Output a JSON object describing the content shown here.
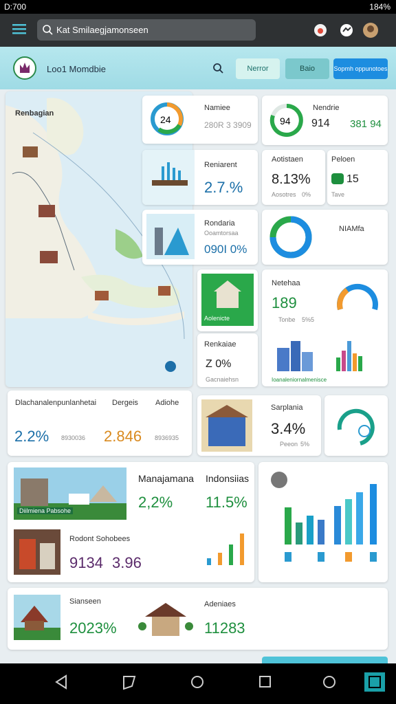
{
  "status_bar": {
    "time": "D:700",
    "battery": "184%"
  },
  "search": {
    "placeholder": "Kat Smilaegjamonseen"
  },
  "header": {
    "title": "Loo1 Momdbie",
    "buttons": [
      "Nerror",
      "Baio",
      "Sopmh oppunotoes"
    ]
  },
  "map": {
    "title": "Renbagian"
  },
  "cards": [
    {
      "badge": "24",
      "title": "Namiee",
      "value": "280R 3 3909"
    },
    {
      "badge": "94",
      "title": "Nendrie",
      "value": "914",
      "extra": "381 94"
    },
    {
      "title": "Reniarent",
      "value": "2.7.%"
    },
    {
      "title": "Aotistaen",
      "value": "8.13%",
      "note": "Aosotres",
      "extra": "0%"
    },
    {
      "title": "Peloen",
      "value": "15",
      "note": "Tave"
    },
    {
      "title": "Rondaria",
      "note": "Ooamtorsaa",
      "value": "090I 0%"
    },
    {
      "title": "NIAMfa"
    },
    {
      "title": "Aolenicte"
    },
    {
      "title": "Netehaa",
      "value": "189",
      "note": "Tonbe",
      "extra": "5%5"
    },
    {
      "title": "Renkaiae",
      "value": "Z 0%",
      "note": "Gacnaiehsn"
    },
    {
      "title": "Ioanaleniornalmenisce"
    }
  ],
  "stats_row": {
    "labels": [
      "Dlachanalenpunlanhetai",
      "Dergeis",
      "Adiohe"
    ],
    "values": [
      "2.2%",
      "8930036",
      "2.846",
      "8936935"
    ]
  },
  "sarplania": {
    "title": "Sarplania",
    "value": "3.4%",
    "note": "Peeon",
    "extra": "5%"
  },
  "feature": {
    "image_label": "Diilmiena Pabsohe",
    "titles": [
      "Manajamana",
      "Indonsiias"
    ],
    "values": [
      "2,2%",
      "11.5%"
    ],
    "sub_title": "Rodont Sohobees",
    "sub_values": [
      "9134",
      "3.96"
    ]
  },
  "bottom": {
    "titles": [
      "Sianseen",
      "Adeniaes"
    ],
    "values": [
      "2023%",
      "11283"
    ]
  }
}
